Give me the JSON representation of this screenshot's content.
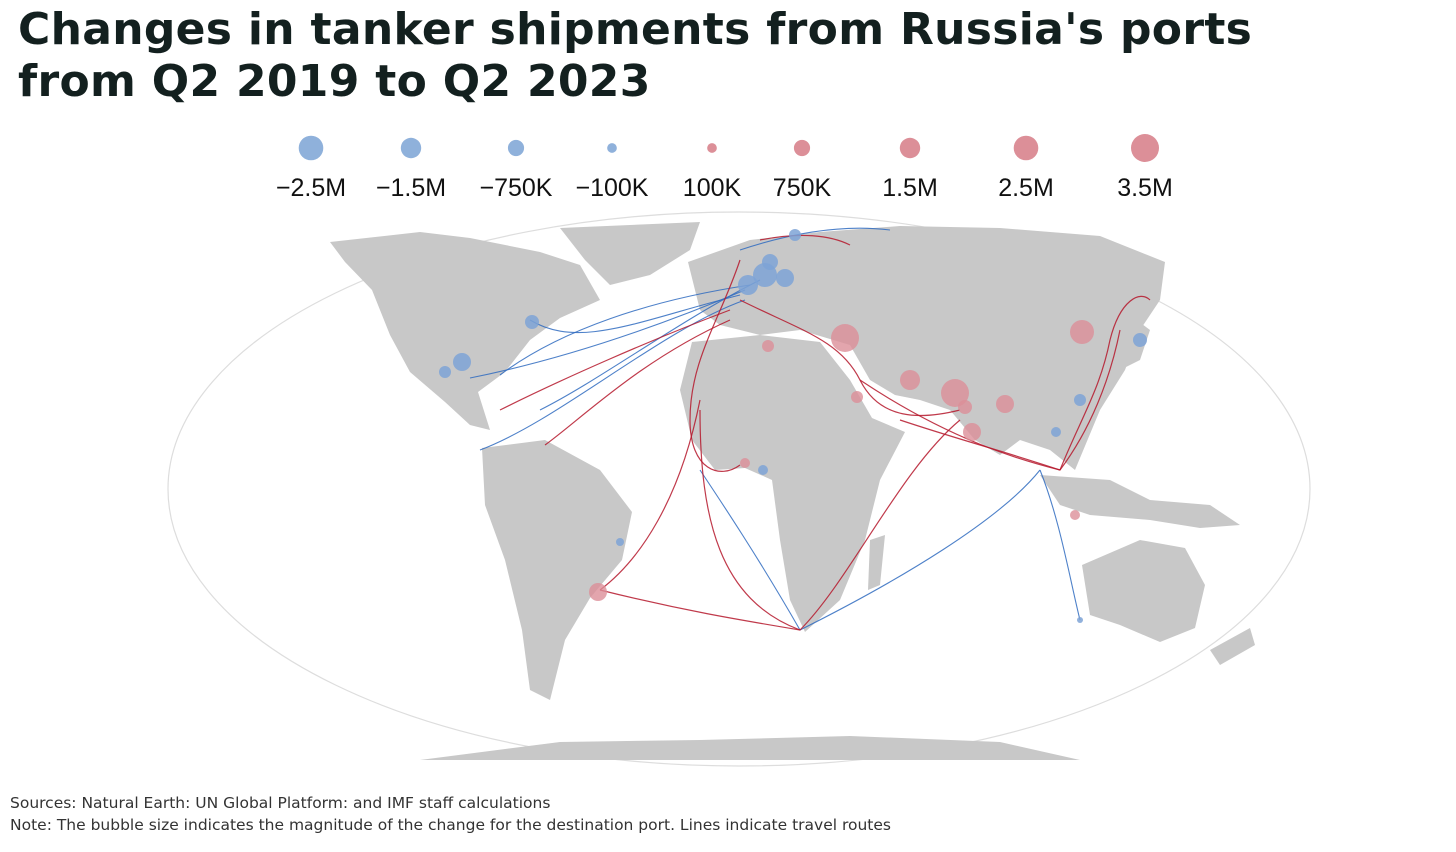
{
  "title": [
    "Changes in tanker shipments from Russia's ports",
    "from Q2 2019 to Q2 2023"
  ],
  "legend": {
    "items": [
      {
        "value": -2500000,
        "label": "−2.5M"
      },
      {
        "value": -1500000,
        "label": "−1.5M"
      },
      {
        "value": -750000,
        "label": "−750K"
      },
      {
        "value": -100000,
        "label": "−100K"
      },
      {
        "value": 100000,
        "label": "100K"
      },
      {
        "value": 750000,
        "label": "750K"
      },
      {
        "value": 1500000,
        "label": "1.5M"
      },
      {
        "value": 2500000,
        "label": "2.5M"
      },
      {
        "value": 3500000,
        "label": "3.5M"
      }
    ],
    "colors": {
      "negative": "#8fb1db",
      "positive": "#dc8f98"
    }
  },
  "footer": {
    "sources": "Sources: Natural Earth: UN Global Platform: and IMF staff calculations",
    "note": "Note: The bubble size indicates the magnitude of the change for the destination port. Lines indicate travel routes"
  }
}
